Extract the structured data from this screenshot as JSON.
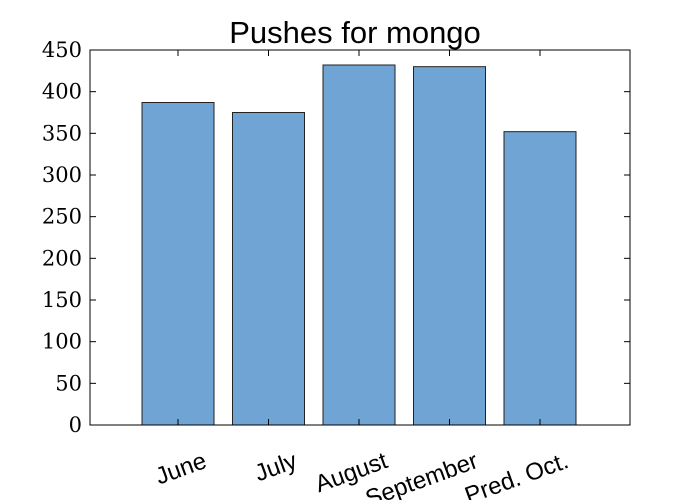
{
  "chart_data": {
    "type": "bar",
    "title": "Pushes for mongo",
    "xlabel": "",
    "ylabel": "",
    "categories": [
      "June",
      "July",
      "August",
      "September",
      "Pred. Oct."
    ],
    "values": [
      387,
      375,
      432,
      430,
      352
    ],
    "ylim": [
      0,
      450
    ],
    "yticks": [
      0,
      50,
      100,
      150,
      200,
      250,
      300,
      350,
      400,
      450
    ],
    "ytick_labels": [
      "0",
      "50",
      "100",
      "150",
      "200",
      "250",
      "300",
      "350",
      "400",
      "450"
    ],
    "grid": false,
    "legend": "none",
    "bar_color": "#6fa4d4",
    "xtick_rotation_deg": -20
  }
}
